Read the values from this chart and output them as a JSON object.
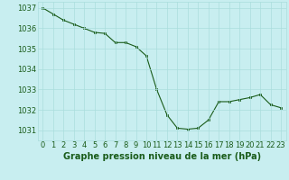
{
  "x": [
    0,
    1,
    2,
    3,
    4,
    5,
    6,
    7,
    8,
    9,
    10,
    11,
    12,
    13,
    14,
    15,
    16,
    17,
    18,
    19,
    20,
    21,
    22,
    23
  ],
  "y": [
    1037.0,
    1036.7,
    1036.4,
    1036.2,
    1036.0,
    1035.8,
    1035.75,
    1035.3,
    1035.3,
    1035.1,
    1034.65,
    1033.0,
    1031.75,
    1031.1,
    1031.05,
    1031.1,
    1031.5,
    1032.4,
    1032.4,
    1032.5,
    1032.6,
    1032.75,
    1032.25,
    1032.1
  ],
  "line_color": "#1a5c1a",
  "marker_color": "#1a5c1a",
  "bg_color": "#c8eef0",
  "grid_color": "#aadddd",
  "xlabel": "Graphe pression niveau de la mer (hPa)",
  "xlabel_color": "#1a5c1a",
  "ylabel_ticks": [
    1031,
    1032,
    1033,
    1034,
    1035,
    1036,
    1037
  ],
  "xlim": [
    -0.5,
    23.5
  ],
  "ylim": [
    1030.5,
    1037.3
  ],
  "tick_label_color": "#1a5c1a",
  "xlabel_fontsize": 7,
  "axis_fontsize": 6
}
